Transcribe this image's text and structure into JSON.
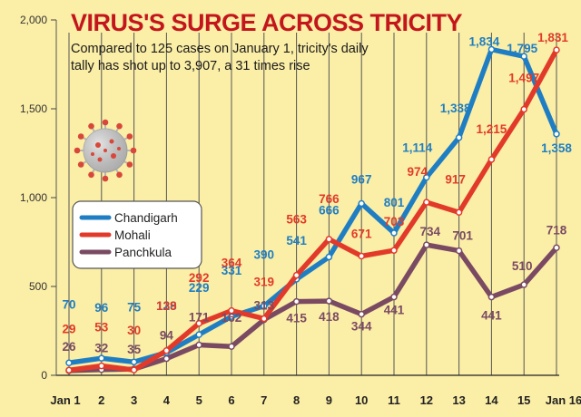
{
  "chart_data": {
    "type": "line",
    "title": "VIRUS'S SURGE ACROSS TRICITY",
    "subtitle_lines": [
      "Compared to 125 cases on January 1, tricity's daily",
      "tally has shot up to 3,907, a 31 times rise"
    ],
    "categories": [
      "Jan 1",
      "2",
      "3",
      "4",
      "5",
      "6",
      "7",
      "8",
      "9",
      "10",
      "11",
      "12",
      "13",
      "14",
      "15",
      "Jan 16"
    ],
    "ylim": [
      0,
      2000
    ],
    "yticks": [
      0,
      500,
      1000,
      1500,
      2000
    ],
    "ytick_labels": [
      "0",
      "500",
      "1,000",
      "1,500",
      "2,000"
    ],
    "grid": "vertical",
    "legend_position": "center-left",
    "series": [
      {
        "name": "Chandigarh",
        "color": "#1f7ec3",
        "values": [
          70,
          96,
          75,
          128,
          229,
          331,
          390,
          541,
          666,
          967,
          801,
          1114,
          1338,
          1834,
          1795,
          1358
        ],
        "labels": [
          "70",
          "96",
          "75",
          "128",
          "229",
          "331",
          "390",
          "541",
          "666",
          "967",
          "801",
          "1,114",
          "1,338",
          "1,834",
          "1,795",
          "1,358"
        ]
      },
      {
        "name": "Mohali",
        "color": "#e23a2a",
        "values": [
          29,
          53,
          30,
          139,
          292,
          364,
          319,
          563,
          766,
          671,
          703,
          974,
          917,
          1215,
          1497,
          1831
        ],
        "labels": [
          "29",
          "53",
          "30",
          "139",
          "292",
          "364",
          "319",
          "563",
          "766",
          "671",
          "703",
          "974",
          "917",
          "1,215",
          "1,497",
          "1,831"
        ]
      },
      {
        "name": "Panchkula",
        "color": "#7a4a63",
        "values": [
          26,
          32,
          35,
          94,
          171,
          162,
          313,
          415,
          418,
          344,
          441,
          734,
          701,
          441,
          510,
          718
        ],
        "labels": [
          "26",
          "32",
          "35",
          "94",
          "171",
          "162",
          "313",
          "415",
          "418",
          "344",
          "441",
          "734",
          "701",
          "441",
          "510",
          "718"
        ]
      }
    ]
  }
}
